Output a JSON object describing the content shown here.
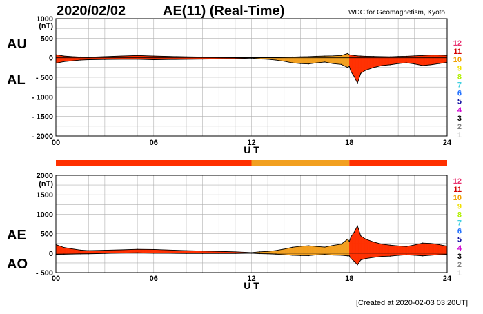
{
  "header": {
    "date": "2020/02/02",
    "title": "AE(11) (Real-Time)",
    "source": "WDC for Geomagnetism, Kyoto"
  },
  "footer": {
    "created": "[Created at 2020-02-03 03:20UT]"
  },
  "station_counts": {
    "labels": [
      "12",
      "11",
      "10",
      "9",
      "8",
      "7",
      "6",
      "5",
      "4",
      "3",
      "2",
      "1"
    ],
    "colors": [
      "#e8306e",
      "#d40000",
      "#f0a000",
      "#f0e000",
      "#b0f000",
      "#40d0e0",
      "#2070ff",
      "#1010a0",
      "#d000d0",
      "#000000",
      "#808080",
      "#c0c0c0"
    ]
  },
  "colors": {
    "count12": "#ff3000",
    "count11": "#f2a020",
    "trace": "#000000",
    "grid": "#b0b0b0"
  },
  "chart_data": [
    {
      "id": "au-al",
      "type": "area",
      "side_labels": [
        "AU",
        "AL"
      ],
      "unit": "(nT)",
      "xlabel": "U T",
      "xlim": [
        0,
        24
      ],
      "ylim": [
        -2000,
        1000
      ],
      "yticks": [
        1000,
        500,
        0,
        -500,
        -1000,
        -1500,
        -2000
      ],
      "ytick_labels": [
        "1000",
        "500",
        "0",
        "- 500",
        "- 1000",
        "- 1500",
        "- 2000"
      ],
      "xticks": [
        0,
        6,
        12,
        18,
        24
      ],
      "xtick_labels": [
        "00",
        "06",
        "12",
        "18",
        "24"
      ],
      "series": [
        {
          "key": "AU",
          "x": [
            0,
            0.5,
            1,
            1.5,
            2,
            3,
            4,
            5,
            6,
            7,
            8,
            9,
            10,
            11,
            12,
            12.5,
            13,
            13.5,
            14,
            14.5,
            15,
            15.5,
            16,
            16.5,
            17,
            17.5,
            17.9,
            18,
            18.1,
            18.3,
            18.5,
            18.7,
            19,
            19.5,
            20,
            20.5,
            21,
            21.5,
            22,
            22.5,
            23,
            23.5,
            24
          ],
          "values": [
            80,
            45,
            30,
            20,
            15,
            30,
            45,
            60,
            45,
            35,
            25,
            20,
            15,
            10,
            5,
            5,
            5,
            8,
            15,
            20,
            25,
            30,
            40,
            45,
            50,
            60,
            110,
            80,
            70,
            60,
            50,
            45,
            40,
            35,
            30,
            25,
            35,
            40,
            50,
            60,
            70,
            70,
            60
          ]
        },
        {
          "key": "AL",
          "x": [
            0,
            0.5,
            1,
            1.5,
            2,
            3,
            4,
            5,
            6,
            7,
            8,
            9,
            10,
            11,
            12,
            12.5,
            13,
            13.5,
            14,
            14.5,
            15,
            15.5,
            16,
            16.5,
            17,
            17.5,
            17.9,
            18,
            18.1,
            18.3,
            18.5,
            18.7,
            19,
            19.5,
            20,
            20.5,
            21,
            21.5,
            22,
            22.5,
            23,
            23.5,
            24
          ],
          "values": [
            -140,
            -100,
            -80,
            -60,
            -50,
            -45,
            -40,
            -40,
            -50,
            -45,
            -40,
            -35,
            -30,
            -25,
            -10,
            -30,
            -40,
            -60,
            -90,
            -130,
            -150,
            -160,
            -130,
            -110,
            -150,
            -170,
            -250,
            -220,
            -350,
            -480,
            -650,
            -400,
            -320,
            -250,
            -200,
            -180,
            -150,
            -130,
            -160,
            -200,
            -180,
            -150,
            -120
          ]
        }
      ],
      "station_bar": [
        {
          "from": 0,
          "to": 12,
          "count": 12
        },
        {
          "from": 12,
          "to": 18,
          "count": 11
        },
        {
          "from": 18,
          "to": 24,
          "count": 12
        }
      ]
    },
    {
      "id": "ae-ao",
      "type": "area",
      "side_labels": [
        "AE",
        "AO"
      ],
      "unit": "(nT)",
      "xlabel": "U T",
      "xlim": [
        0,
        24
      ],
      "ylim": [
        -500,
        2000
      ],
      "yticks": [
        2000,
        1500,
        1000,
        500,
        0,
        -500
      ],
      "ytick_labels": [
        "2000",
        "1500",
        "1000",
        "500",
        "0",
        "- 500"
      ],
      "xticks": [
        0,
        6,
        12,
        18,
        24
      ],
      "xtick_labels": [
        "00",
        "06",
        "12",
        "18",
        "24"
      ],
      "series": [
        {
          "key": "AE",
          "x": [
            0,
            0.5,
            1,
            1.5,
            2,
            3,
            4,
            5,
            6,
            7,
            8,
            9,
            10,
            11,
            12,
            12.5,
            13,
            13.5,
            14,
            14.5,
            15,
            15.5,
            16,
            16.5,
            17,
            17.5,
            17.9,
            18,
            18.1,
            18.3,
            18.5,
            18.7,
            19,
            19.5,
            20,
            20.5,
            21,
            21.5,
            22,
            22.5,
            23,
            23.5,
            24
          ],
          "values": [
            220,
            145,
            110,
            80,
            65,
            75,
            85,
            100,
            95,
            80,
            65,
            55,
            45,
            35,
            15,
            35,
            45,
            68,
            105,
            150,
            175,
            190,
            170,
            155,
            200,
            230,
            360,
            300,
            420,
            540,
            700,
            445,
            360,
            285,
            230,
            205,
            185,
            170,
            210,
            260,
            250,
            220,
            180
          ]
        },
        {
          "key": "AO",
          "x": [
            0,
            0.5,
            1,
            1.5,
            2,
            3,
            4,
            5,
            6,
            7,
            8,
            9,
            10,
            11,
            12,
            12.5,
            13,
            13.5,
            14,
            14.5,
            15,
            15.5,
            16,
            16.5,
            17,
            17.5,
            17.9,
            18,
            18.1,
            18.3,
            18.5,
            18.7,
            19,
            19.5,
            20,
            20.5,
            21,
            21.5,
            22,
            22.5,
            23,
            23.5,
            24
          ],
          "values": [
            -30,
            -28,
            -25,
            -20,
            -18,
            -8,
            3,
            10,
            -3,
            -5,
            -8,
            -8,
            -8,
            -8,
            -3,
            -13,
            -18,
            -26,
            -38,
            -55,
            -63,
            -65,
            -45,
            -33,
            -50,
            -55,
            -70,
            -70,
            -140,
            -210,
            -300,
            -178,
            -140,
            -108,
            -85,
            -78,
            -58,
            -45,
            -55,
            -70,
            -55,
            -40,
            -30
          ]
        }
      ]
    }
  ]
}
